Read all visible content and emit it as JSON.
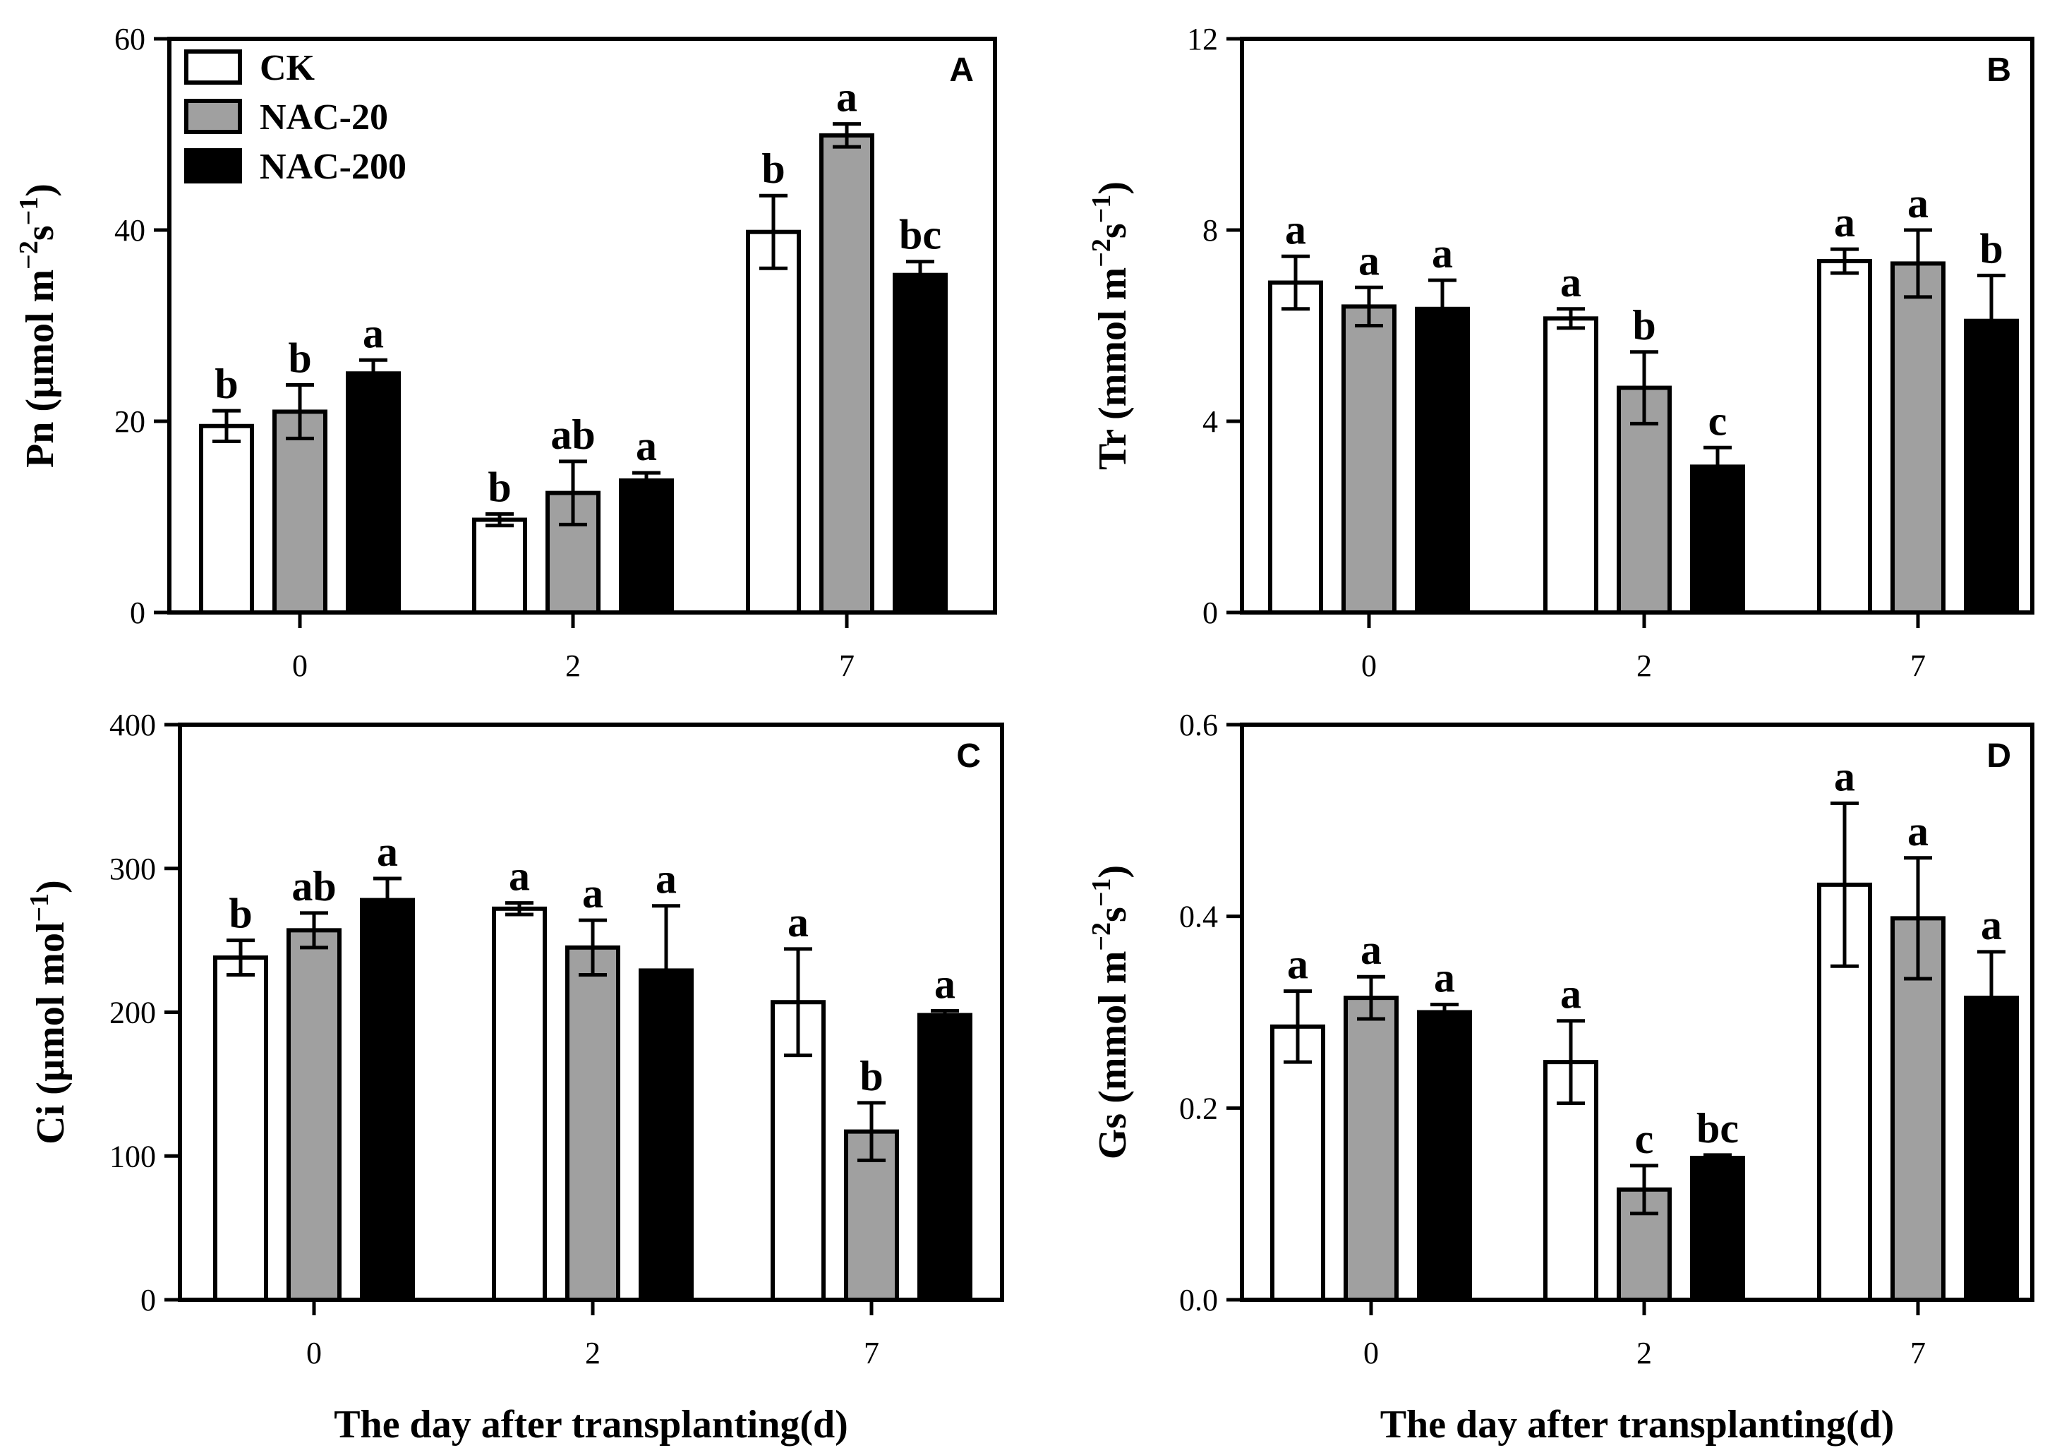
{
  "chart_data": [
    {
      "type": "bar",
      "panel": "A",
      "categories": [
        "0",
        "2",
        "7"
      ],
      "series": [
        {
          "name": "CK",
          "color": "#ffffff",
          "values": [
            19.5,
            9.7,
            39.8
          ],
          "errors": [
            1.6,
            0.6,
            3.8
          ],
          "letters": [
            "b",
            "b",
            "b"
          ]
        },
        {
          "name": "NAC-20",
          "color": "#a0a0a0",
          "values": [
            21.0,
            12.5,
            49.9
          ],
          "errors": [
            2.8,
            3.3,
            1.2
          ],
          "letters": [
            "b",
            "ab",
            "a"
          ]
        },
        {
          "name": "NAC-200",
          "color": "#000000",
          "values": [
            25.0,
            13.8,
            35.3
          ],
          "errors": [
            1.4,
            0.8,
            1.4
          ],
          "letters": [
            "a",
            "a",
            "bc"
          ]
        }
      ],
      "ylabel_prefix": "Pn (µmol m",
      "ylabel_exp1": "−2",
      "ylabel_mid": "s",
      "ylabel_exp2": "−1",
      "ylabel_suffix": ")",
      "ylim": [
        0,
        60
      ],
      "yticks": [
        "0",
        "20",
        "40",
        "60"
      ],
      "xlabel": "",
      "legend": true
    },
    {
      "type": "bar",
      "panel": "B",
      "categories": [
        "0",
        "2",
        "7"
      ],
      "series": [
        {
          "name": "CK",
          "color": "#ffffff",
          "values": [
            6.9,
            6.15,
            7.35
          ],
          "errors": [
            0.55,
            0.2,
            0.25
          ],
          "letters": [
            "a",
            "a",
            "a"
          ]
        },
        {
          "name": "NAC-20",
          "color": "#a0a0a0",
          "values": [
            6.4,
            4.7,
            7.3
          ],
          "errors": [
            0.4,
            0.75,
            0.7
          ],
          "letters": [
            "a",
            "b",
            "a"
          ]
        },
        {
          "name": "NAC-200",
          "color": "#000000",
          "values": [
            6.35,
            3.05,
            6.1
          ],
          "errors": [
            0.6,
            0.4,
            0.95
          ],
          "letters": [
            "a",
            "c",
            "b"
          ]
        }
      ],
      "ylabel_prefix": "Tr (mmol m",
      "ylabel_exp1": "−2",
      "ylabel_mid": "s",
      "ylabel_exp2": "−1",
      "ylabel_suffix": ")",
      "ylim": [
        0,
        12
      ],
      "yticks": [
        "0",
        "4",
        "8",
        "12"
      ],
      "xlabel": "",
      "legend": false
    },
    {
      "type": "bar",
      "panel": "C",
      "categories": [
        "0",
        "2",
        "7"
      ],
      "series": [
        {
          "name": "CK",
          "color": "#ffffff",
          "values": [
            238,
            272,
            207
          ],
          "errors": [
            12,
            4,
            37
          ],
          "letters": [
            "b",
            "a",
            "a"
          ]
        },
        {
          "name": "NAC-20",
          "color": "#a0a0a0",
          "values": [
            257,
            245,
            117
          ],
          "errors": [
            12,
            19,
            20
          ],
          "letters": [
            "ab",
            "a",
            "b"
          ]
        },
        {
          "name": "NAC-200",
          "color": "#000000",
          "values": [
            278,
            229,
            198
          ],
          "errors": [
            15,
            45,
            3
          ],
          "letters": [
            "a",
            "a",
            "a"
          ]
        }
      ],
      "ylabel_prefix": "Ci (µmol mol",
      "ylabel_exp1": "−1",
      "ylabel_mid": "",
      "ylabel_exp2": "",
      "ylabel_suffix": ")",
      "ylim": [
        0,
        400
      ],
      "yticks": [
        "0",
        "100",
        "200",
        "300",
        "400"
      ],
      "xlabel": "The day after transplanting(d)",
      "legend": false
    },
    {
      "type": "bar",
      "panel": "D",
      "categories": [
        "0",
        "2",
        "7"
      ],
      "series": [
        {
          "name": "CK",
          "color": "#ffffff",
          "values": [
            0.285,
            0.248,
            0.433
          ],
          "errors": [
            0.037,
            0.043,
            0.085
          ],
          "letters": [
            "a",
            "a",
            "a"
          ]
        },
        {
          "name": "NAC-20",
          "color": "#a0a0a0",
          "values": [
            0.315,
            0.115,
            0.398
          ],
          "errors": [
            0.022,
            0.025,
            0.063
          ],
          "letters": [
            "a",
            "c",
            "a"
          ]
        },
        {
          "name": "NAC-200",
          "color": "#000000",
          "values": [
            0.3,
            0.148,
            0.315
          ],
          "errors": [
            0.008,
            0.003,
            0.048
          ],
          "letters": [
            "a",
            "bc",
            "a"
          ]
        }
      ],
      "ylabel_prefix": "Gs (mmol m",
      "ylabel_exp1": "−2",
      "ylabel_mid": "s",
      "ylabel_exp2": "−1",
      "ylabel_suffix": ")",
      "ylim": [
        0,
        0.6
      ],
      "yticks": [
        "0.0",
        "0.2",
        "0.4",
        "0.6"
      ],
      "xlabel": "The day after transplanting(d)",
      "legend": false
    }
  ]
}
